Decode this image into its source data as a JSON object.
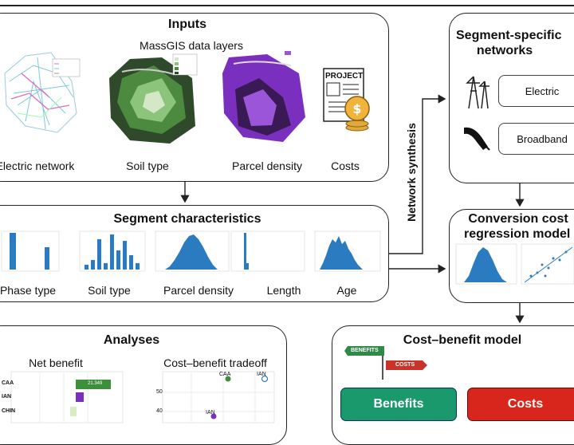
{
  "inputs": {
    "title": "Inputs",
    "massgis": "MassGIS data layers",
    "items": [
      "Electric network",
      "Soil type",
      "Parcel density",
      "Costs"
    ],
    "project_label": "PROJECT"
  },
  "segment_networks": {
    "title_line1": "Segment-specific",
    "title_line2": "networks",
    "electric": "Electric",
    "broadband": "Broadband"
  },
  "network_synthesis": "Network synthesis",
  "segment_characteristics": {
    "title": "Segment characteristics",
    "items": [
      "Phase type",
      "Soil type",
      "Parcel density",
      "Length",
      "Age"
    ]
  },
  "conversion": {
    "title_line1": "Conversion cost",
    "title_line2": "regression model"
  },
  "analyses": {
    "title": "Analyses",
    "net_benefit": "Net benefit",
    "tradeoff": "Cost–benefit tradeoff",
    "bar_labels": [
      "CAA",
      "IAN",
      "CHIN"
    ],
    "value_label": "21.349",
    "scatter_labels": [
      "CAA",
      "IAN",
      "IAN"
    ],
    "yticks": [
      "50",
      "40"
    ]
  },
  "cost_benefit": {
    "title": "Cost–benefit model",
    "sign_benefits": "BENEFITS",
    "sign_costs": "COSTS",
    "benefits": "Benefits",
    "costs": "Costs"
  },
  "colors": {
    "benefits": "#1a9a6c",
    "costs": "#d9261c",
    "hist": "#2b7bc0",
    "purple": "#7b2fbf",
    "green": "#3d8f3a"
  }
}
